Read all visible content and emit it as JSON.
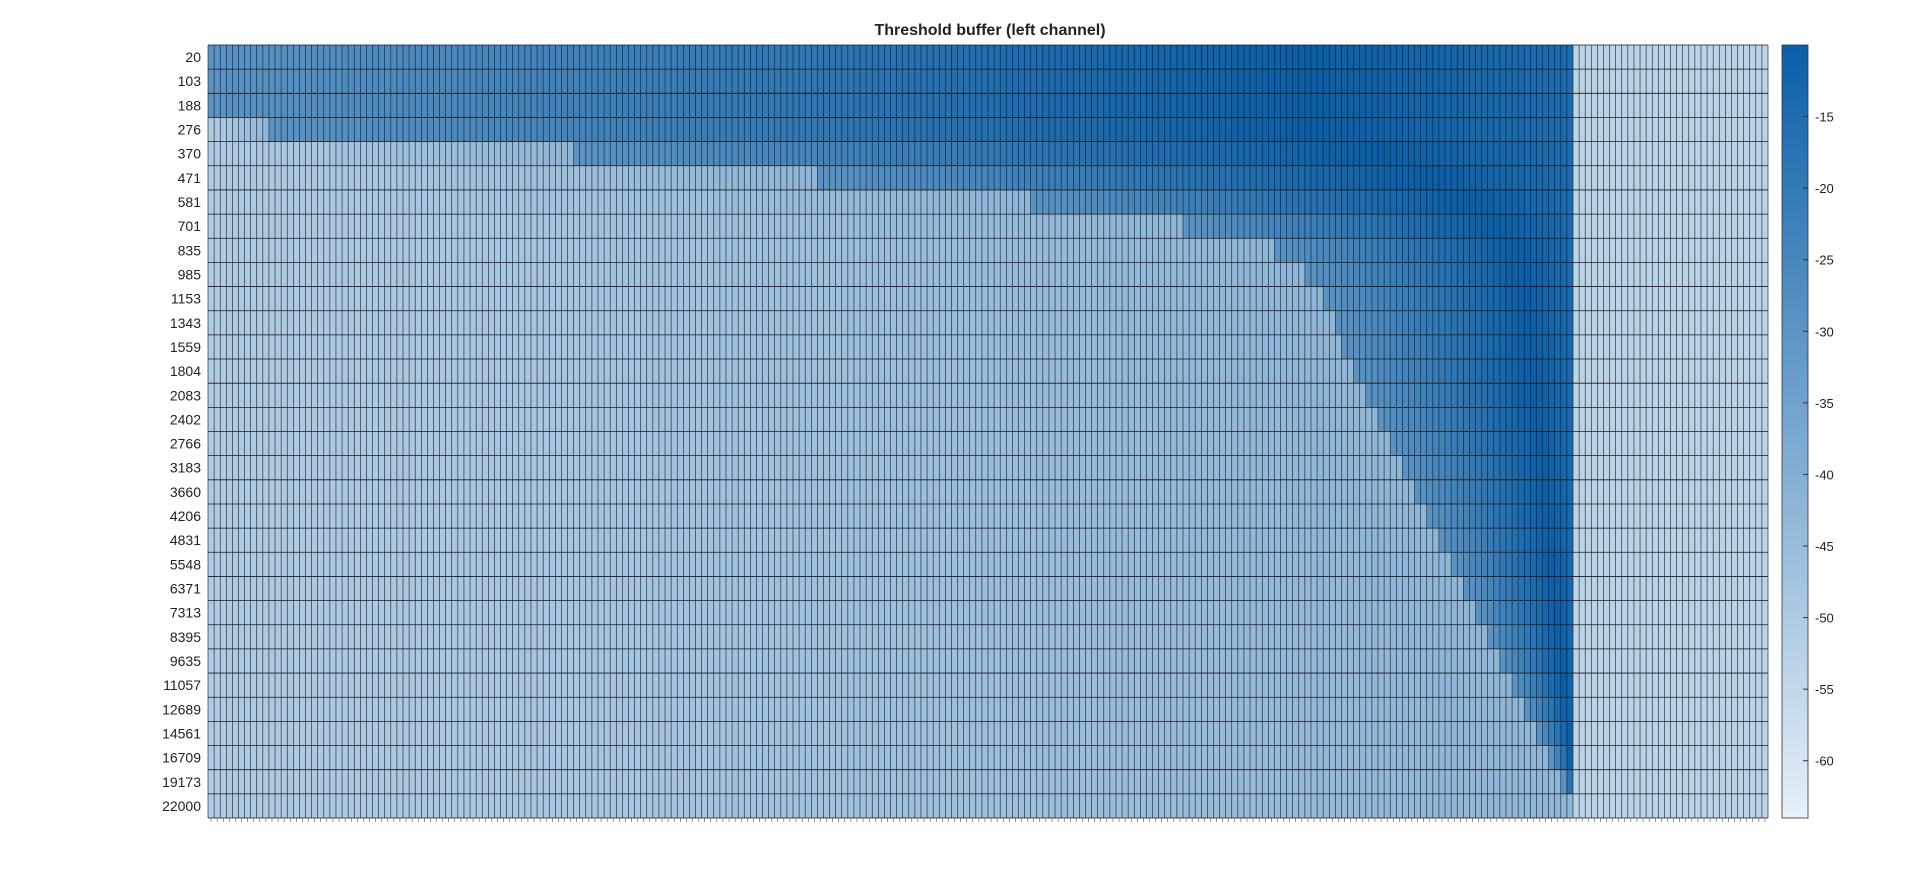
{
  "chart_data": {
    "type": "heatmap",
    "title": "Threshold buffer (left channel)",
    "xlabel": "",
    "ylabel": "",
    "y_ticks": [
      20,
      103,
      188,
      276,
      370,
      471,
      581,
      701,
      835,
      985,
      1153,
      1343,
      1559,
      1804,
      2083,
      2402,
      2766,
      3183,
      3660,
      4206,
      4831,
      5548,
      6371,
      7313,
      8395,
      9635,
      11057,
      12689,
      14561,
      16709,
      19173,
      22000
    ],
    "x_tick_labels": [],
    "x_column_count": 256,
    "colorbar": {
      "ticks": [
        -15,
        -20,
        -25,
        -30,
        -35,
        -40,
        -45,
        -50,
        -55,
        -60
      ],
      "range": [
        -64,
        -10
      ],
      "low_color": "#e6f0f8",
      "high_color": "#0a5fa8"
    },
    "grid": true,
    "data_shape": "per-row onset column of high threshold values",
    "onset_columns": [
      0,
      0,
      0,
      10,
      60,
      100,
      135,
      160,
      175,
      180,
      183,
      185,
      186,
      188,
      190,
      192,
      194,
      196,
      198,
      200,
      202,
      204,
      206,
      208,
      210,
      212,
      214,
      216,
      218,
      220,
      222,
      224
    ],
    "values_description_stop": [
      224,
      224,
      224,
      224,
      224,
      224,
      224,
      224,
      224,
      224,
      224,
      224,
      224,
      224,
      224,
      224,
      224,
      224,
      224,
      224,
      224,
      224,
      224,
      224,
      224,
      224,
      224,
      224,
      224,
      224,
      224,
      224
    ]
  }
}
